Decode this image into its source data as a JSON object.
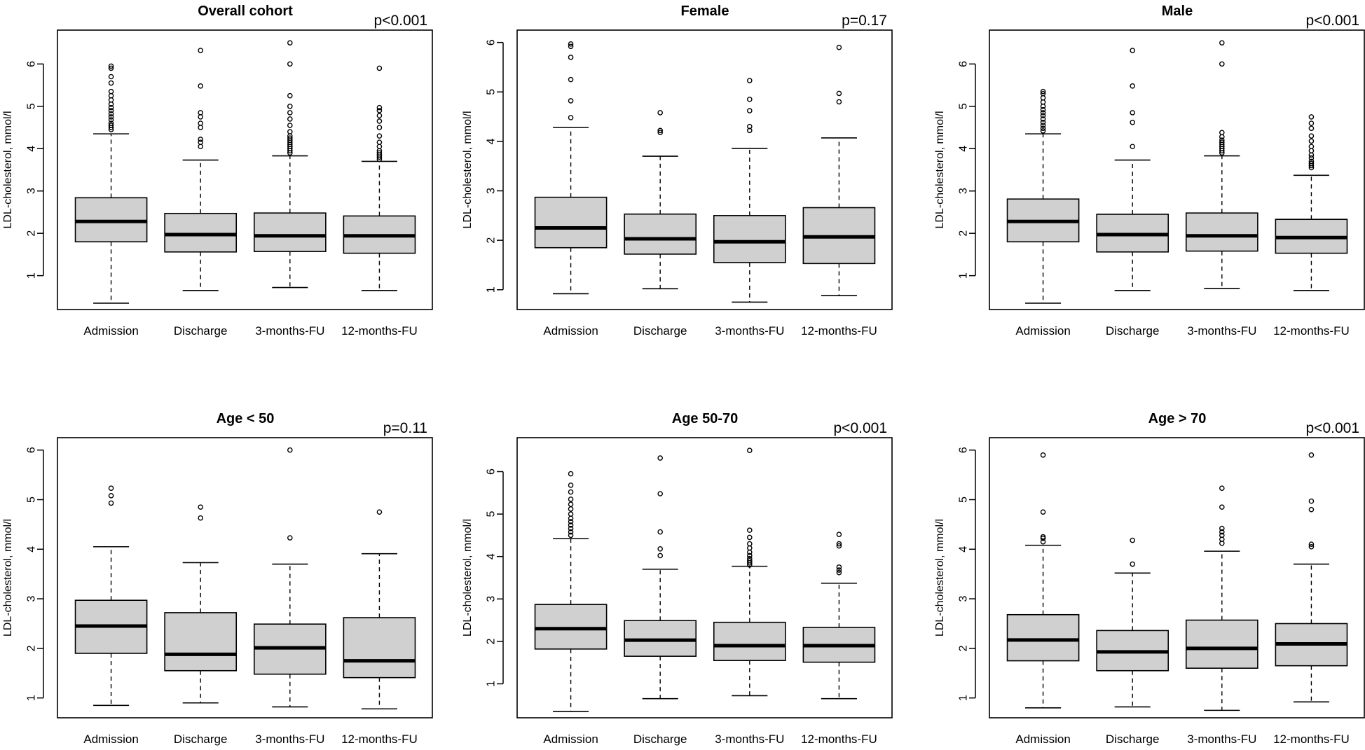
{
  "chart_data": [
    {
      "type": "box",
      "title": "Overall cohort",
      "pvalue": "p<0.001",
      "ylabel": "LDL-cholesterol, mmol/l",
      "yticks": [
        1,
        2,
        3,
        4,
        5,
        6
      ],
      "ylim": [
        0.2,
        6.8
      ],
      "categories": [
        "Admission",
        "Discharge",
        "3-months-FU",
        "12-months-FU"
      ],
      "boxes": [
        {
          "whislo": 0.35,
          "q1": 1.8,
          "med": 2.28,
          "q3": 2.84,
          "whishi": 4.35,
          "fliers": [
            4.45,
            4.5,
            4.55,
            4.6,
            4.68,
            4.75,
            4.82,
            4.9,
            4.97,
            5.05,
            5.15,
            5.25,
            5.35,
            5.55,
            5.7,
            5.9,
            5.95
          ]
        },
        {
          "whislo": 0.65,
          "q1": 1.56,
          "med": 1.97,
          "q3": 2.47,
          "whishi": 3.73,
          "fliers": [
            4.05,
            4.15,
            4.22,
            4.5,
            4.6,
            4.75,
            4.85,
            5.48,
            6.32
          ]
        },
        {
          "whislo": 0.72,
          "q1": 1.57,
          "med": 1.94,
          "q3": 2.48,
          "whishi": 3.83,
          "fliers": [
            3.9,
            3.95,
            4.0,
            4.05,
            4.1,
            4.15,
            4.2,
            4.25,
            4.3,
            4.4,
            4.55,
            4.7,
            4.85,
            5.0,
            5.25,
            6.0,
            6.5
          ]
        },
        {
          "whislo": 0.65,
          "q1": 1.53,
          "med": 1.94,
          "q3": 2.41,
          "whishi": 3.7,
          "fliers": [
            3.75,
            3.8,
            3.85,
            3.9,
            3.95,
            4.05,
            4.15,
            4.3,
            4.5,
            4.65,
            4.78,
            4.9,
            4.97,
            5.9
          ]
        }
      ]
    },
    {
      "type": "box",
      "title": "Female",
      "pvalue": "p=0.17",
      "ylabel": "LDL-cholesterol, mmol/l",
      "yticks": [
        1,
        2,
        3,
        4,
        5,
        6
      ],
      "ylim": [
        0.6,
        6.25
      ],
      "categories": [
        "Admission",
        "Discharge",
        "3-months-FU",
        "12-months-FU"
      ],
      "boxes": [
        {
          "whislo": 0.92,
          "q1": 1.85,
          "med": 2.25,
          "q3": 2.87,
          "whishi": 4.28,
          "fliers": [
            4.48,
            4.82,
            5.25,
            5.7,
            5.92,
            5.97
          ]
        },
        {
          "whislo": 1.02,
          "q1": 1.72,
          "med": 2.03,
          "q3": 2.53,
          "whishi": 3.7,
          "fliers": [
            4.18,
            4.22,
            4.58
          ]
        },
        {
          "whislo": 0.75,
          "q1": 1.55,
          "med": 1.97,
          "q3": 2.5,
          "whishi": 3.86,
          "fliers": [
            4.22,
            4.3,
            4.62,
            4.85,
            5.23
          ]
        },
        {
          "whislo": 0.88,
          "q1": 1.53,
          "med": 2.07,
          "q3": 2.66,
          "whishi": 4.07,
          "fliers": [
            4.8,
            4.97,
            5.9
          ]
        }
      ]
    },
    {
      "type": "box",
      "title": "Male",
      "pvalue": "p<0.001",
      "ylabel": "LDL-cholesterol, mmol/l",
      "yticks": [
        1,
        2,
        3,
        4,
        5,
        6
      ],
      "ylim": [
        0.2,
        6.8
      ],
      "categories": [
        "Admission",
        "Discharge",
        "3-months-FU",
        "12-months-FU"
      ],
      "boxes": [
        {
          "whislo": 0.35,
          "q1": 1.8,
          "med": 2.28,
          "q3": 2.81,
          "whishi": 4.35,
          "fliers": [
            4.42,
            4.48,
            4.55,
            4.62,
            4.7,
            4.78,
            4.85,
            4.92,
            5.0,
            5.1,
            5.2,
            5.3,
            5.35
          ]
        },
        {
          "whislo": 0.65,
          "q1": 1.56,
          "med": 1.97,
          "q3": 2.45,
          "whishi": 3.73,
          "fliers": [
            4.05,
            4.62,
            4.85,
            5.48,
            6.32
          ]
        },
        {
          "whislo": 0.7,
          "q1": 1.58,
          "med": 1.94,
          "q3": 2.48,
          "whishi": 3.83,
          "fliers": [
            3.9,
            3.95,
            4.0,
            4.05,
            4.1,
            4.15,
            4.2,
            4.28,
            4.38,
            6.0,
            6.5
          ]
        },
        {
          "whislo": 0.65,
          "q1": 1.53,
          "med": 1.9,
          "q3": 2.33,
          "whishi": 3.37,
          "fliers": [
            3.55,
            3.6,
            3.65,
            3.7,
            3.78,
            3.85,
            3.95,
            4.05,
            4.18,
            4.3,
            4.48,
            4.6,
            4.75
          ]
        }
      ]
    },
    {
      "type": "box",
      "title": "Age < 50",
      "pvalue": "p=0.11",
      "ylabel": "LDL-cholesterol, mmol/l",
      "yticks": [
        1,
        2,
        3,
        4,
        5,
        6
      ],
      "ylim": [
        0.6,
        6.25
      ],
      "categories": [
        "Admission",
        "Discharge",
        "3-months-FU",
        "12-months-FU"
      ],
      "boxes": [
        {
          "whislo": 0.85,
          "q1": 1.9,
          "med": 2.45,
          "q3": 2.97,
          "whishi": 4.05,
          "fliers": [
            4.93,
            5.08,
            5.23
          ]
        },
        {
          "whislo": 0.9,
          "q1": 1.55,
          "med": 1.88,
          "q3": 2.72,
          "whishi": 3.73,
          "fliers": [
            4.63,
            4.85
          ]
        },
        {
          "whislo": 0.82,
          "q1": 1.48,
          "med": 2.01,
          "q3": 2.49,
          "whishi": 3.7,
          "fliers": [
            4.23,
            6.0
          ]
        },
        {
          "whislo": 0.78,
          "q1": 1.41,
          "med": 1.75,
          "q3": 2.62,
          "whishi": 3.91,
          "fliers": [
            4.75
          ]
        }
      ]
    },
    {
      "type": "box",
      "title": "Age 50-70",
      "pvalue": "p<0.001",
      "ylabel": "LDL-cholesterol, mmol/l",
      "yticks": [
        1,
        2,
        3,
        4,
        5,
        6
      ],
      "ylim": [
        0.2,
        6.8
      ],
      "categories": [
        "Admission",
        "Discharge",
        "3-months-FU",
        "12-months-FU"
      ],
      "boxes": [
        {
          "whislo": 0.35,
          "q1": 1.82,
          "med": 2.3,
          "q3": 2.87,
          "whishi": 4.42,
          "fliers": [
            4.5,
            4.58,
            4.66,
            4.74,
            4.82,
            4.9,
            5.0,
            5.12,
            5.23,
            5.35,
            5.52,
            5.68,
            5.95
          ]
        },
        {
          "whislo": 0.65,
          "q1": 1.65,
          "med": 2.03,
          "q3": 2.49,
          "whishi": 3.7,
          "fliers": [
            4.02,
            4.18,
            4.58,
            5.48,
            6.32
          ]
        },
        {
          "whislo": 0.72,
          "q1": 1.55,
          "med": 1.9,
          "q3": 2.45,
          "whishi": 3.77,
          "fliers": [
            3.8,
            3.85,
            3.9,
            3.95,
            4.02,
            4.1,
            4.2,
            4.3,
            4.45,
            4.62,
            6.5
          ]
        },
        {
          "whislo": 0.65,
          "q1": 1.51,
          "med": 1.9,
          "q3": 2.33,
          "whishi": 3.37,
          "fliers": [
            3.62,
            3.68,
            3.75,
            4.25,
            4.3,
            4.52
          ]
        }
      ]
    },
    {
      "type": "box",
      "title": "Age > 70",
      "pvalue": "p<0.001",
      "ylabel": "LDL-cholesterol, mmol/l",
      "yticks": [
        1,
        2,
        3,
        4,
        5,
        6
      ],
      "ylim": [
        0.6,
        6.25
      ],
      "categories": [
        "Admission",
        "Discharge",
        "3-months-FU",
        "12-months-FU"
      ],
      "boxes": [
        {
          "whislo": 0.8,
          "q1": 1.75,
          "med": 2.17,
          "q3": 2.68,
          "whishi": 4.08,
          "fliers": [
            4.15,
            4.22,
            4.25,
            4.75,
            5.9
          ]
        },
        {
          "whislo": 0.82,
          "q1": 1.55,
          "med": 1.93,
          "q3": 2.36,
          "whishi": 3.52,
          "fliers": [
            3.7,
            4.18
          ]
        },
        {
          "whislo": 0.75,
          "q1": 1.6,
          "med": 2.0,
          "q3": 2.57,
          "whishi": 3.96,
          "fliers": [
            4.12,
            4.2,
            4.28,
            4.35,
            4.42,
            4.85,
            5.23
          ]
        },
        {
          "whislo": 0.92,
          "q1": 1.65,
          "med": 2.09,
          "q3": 2.5,
          "whishi": 3.7,
          "fliers": [
            4.05,
            4.1,
            4.8,
            4.97,
            5.9
          ]
        }
      ]
    }
  ]
}
